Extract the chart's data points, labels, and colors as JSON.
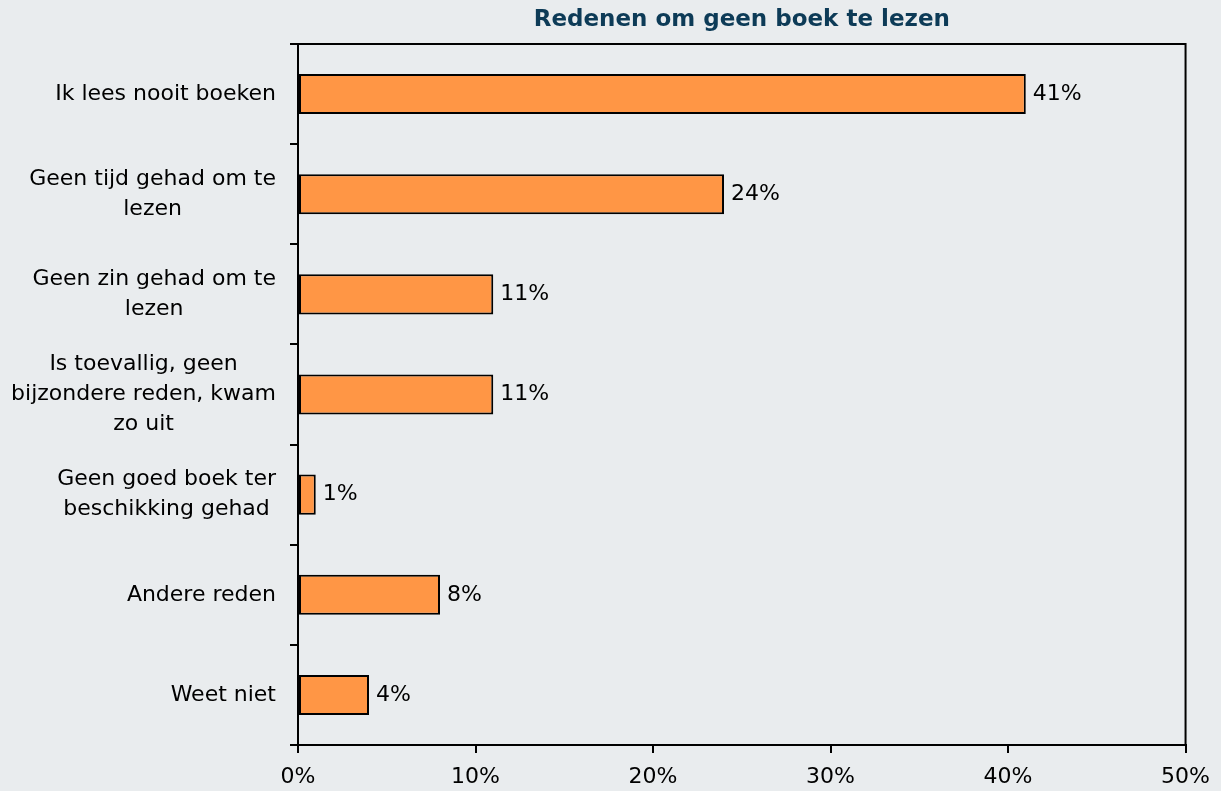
{
  "chart_data": {
    "type": "bar",
    "orientation": "horizontal",
    "title": "Redenen om geen boek te lezen",
    "categories": [
      "Ik lees nooit boeken",
      "Geen tijd gehad om te lezen",
      "Geen zin gehad om te lezen",
      "Is toevallig, geen bijzondere reden, kwam zo uit",
      "Geen goed boek ter beschikking gehad",
      "Andere reden",
      "Weet niet"
    ],
    "values": [
      41,
      24,
      11,
      11,
      1,
      8,
      4
    ],
    "value_labels": [
      "41%",
      "24%",
      "11%",
      "11%",
      "1%",
      "8%",
      "4%"
    ],
    "color": "#ff9645",
    "xlim": [
      0,
      50
    ],
    "xticks": [
      {
        "value": 0,
        "label": "0%"
      },
      {
        "value": 10,
        "label": "10%"
      },
      {
        "value": 20,
        "label": "20%"
      },
      {
        "value": 30,
        "label": "30%"
      },
      {
        "value": 40,
        "label": "40%"
      },
      {
        "value": 50,
        "label": "50%"
      }
    ]
  }
}
